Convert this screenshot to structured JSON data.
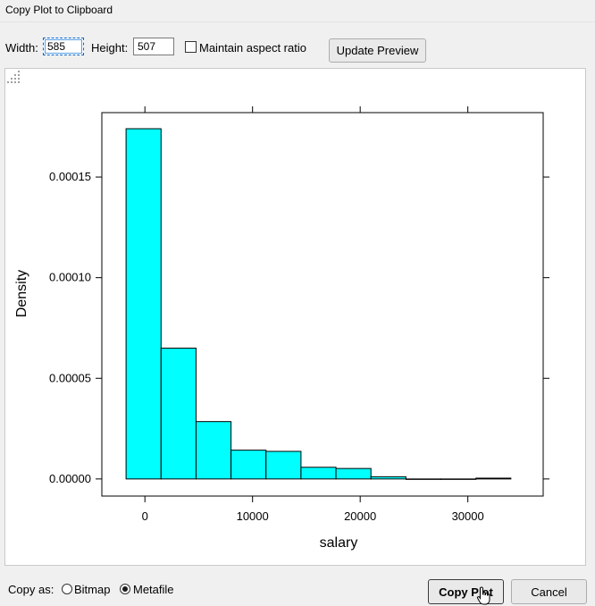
{
  "window": {
    "title": "Copy Plot to Clipboard"
  },
  "toolbar": {
    "width_label": "Width:",
    "width_value": "585",
    "height_label": "Height:",
    "height_value": "507",
    "maintain_aspect_label": "Maintain aspect ratio",
    "maintain_aspect_checked": false,
    "update_preview_label": "Update Preview"
  },
  "chart_data": {
    "type": "bar",
    "bin_edges": [
      -1750,
      1500,
      4750,
      8000,
      11250,
      14500,
      17750,
      21000,
      24250,
      27500,
      30750,
      34000
    ],
    "values": [
      0.000174,
      6.5e-05,
      2.85e-05,
      1.43e-05,
      1.37e-05,
      5.8e-06,
      5.2e-06,
      1.1e-06,
      0.0,
      0.0,
      4e-07
    ],
    "xlabel": "salary",
    "ylabel": "Density",
    "xlim": [
      -4000,
      37000
    ],
    "ylim": [
      -8.5e-06,
      0.000182
    ],
    "x_ticks": [
      0,
      10000,
      20000,
      30000
    ],
    "x_tick_labels": [
      "0",
      "10000",
      "20000",
      "30000"
    ],
    "y_ticks": [
      0,
      5e-05,
      0.0001,
      0.00015
    ],
    "y_tick_labels": [
      "0.00000",
      "0.00005",
      "0.00010",
      "0.00015"
    ],
    "bar_color": "#00ffff",
    "grid": false
  },
  "bottom": {
    "copy_as_label": "Copy as:",
    "bitmap_label": "Bitmap",
    "metafile_label": "Metafile",
    "selected": "metafile",
    "copy_plot_label": "Copy Plot",
    "cancel_label": "Cancel"
  }
}
